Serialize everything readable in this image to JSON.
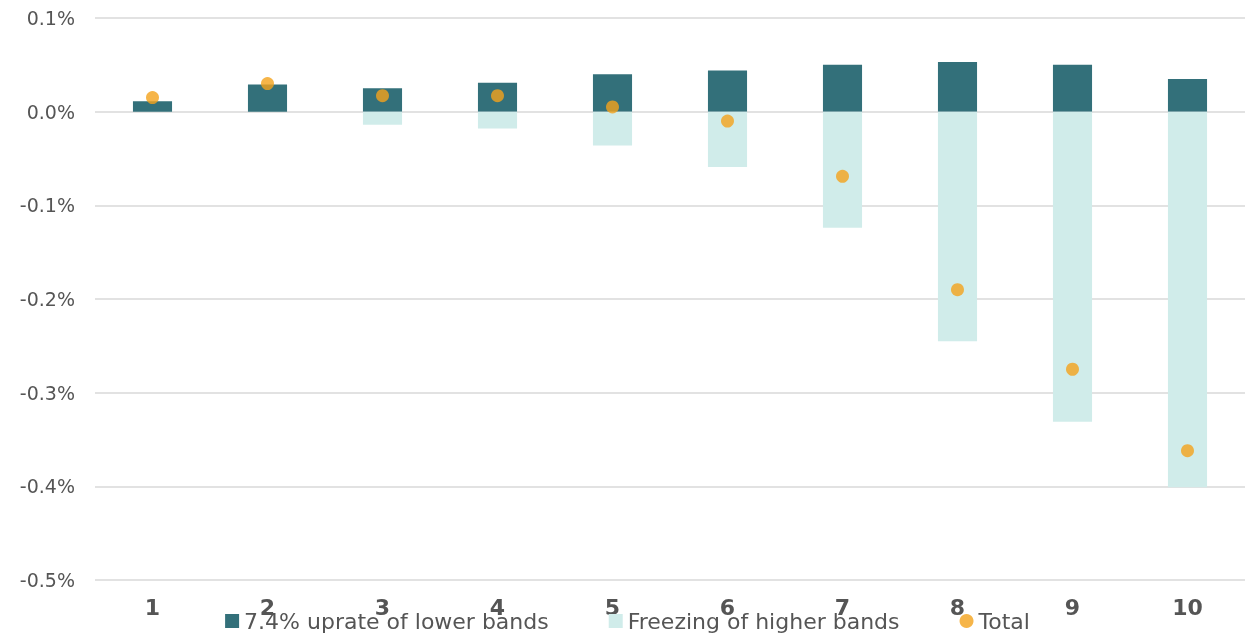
{
  "chart_data": {
    "type": "bar",
    "stacked": true,
    "categories": [
      "1",
      "2",
      "3",
      "4",
      "5",
      "6",
      "7",
      "8",
      "9",
      "10"
    ],
    "series": [
      {
        "name": "7.4% uprate of lower bands",
        "color": "#33707a",
        "values": [
          0.011,
          0.029,
          0.025,
          0.031,
          0.04,
          0.044,
          0.05,
          0.053,
          0.05,
          0.035
        ]
      },
      {
        "name": "Freezing of higher bands",
        "color": "#d0ecea",
        "values": [
          0,
          0,
          -0.014,
          -0.018,
          -0.036,
          -0.059,
          -0.124,
          -0.245,
          -0.331,
          -0.401
        ]
      },
      {
        "name": "Total",
        "type": "scatter",
        "color": "#f4a21c",
        "marker": "circle",
        "x": [
          "1",
          "2",
          "3",
          "4",
          "5",
          "6",
          "7",
          "8",
          "9",
          "10"
        ],
        "values": [
          0.015,
          0.03,
          0.017,
          0.017,
          0.005,
          -0.01,
          -0.069,
          -0.19,
          -0.275,
          -0.362
        ]
      }
    ],
    "ylim": [
      -0.5,
      0.1
    ],
    "yticks": [
      {
        "value": 0.1,
        "label": "0.1%"
      },
      {
        "value": 0,
        "label": "0.0%"
      },
      {
        "value": -0.1,
        "label": "-0.1%"
      },
      {
        "value": -0.2,
        "label": "-0.2%"
      },
      {
        "value": -0.3,
        "label": "-0.3%"
      },
      {
        "value": -0.4,
        "label": "-0.4%"
      },
      {
        "value": -0.5,
        "label": "-0.5%"
      }
    ],
    "grid": "y",
    "legend": "bottom"
  }
}
